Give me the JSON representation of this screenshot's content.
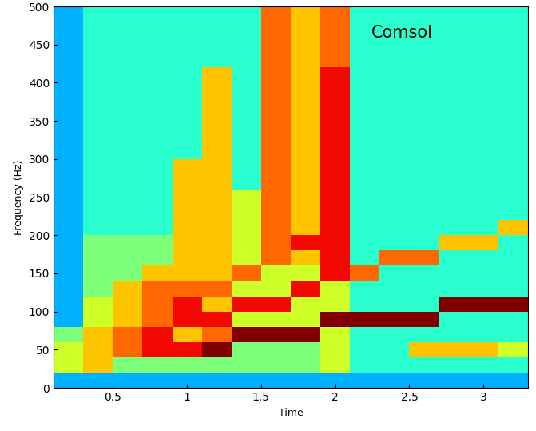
{
  "chart_data": {
    "type": "heatmap",
    "xlabel": "Time",
    "ylabel": "Frequency (Hz)",
    "annotations": [
      "Comsol"
    ],
    "color": "jet",
    "color_range": [
      0,
      10
    ],
    "x_edges": [
      0.1,
      0.3,
      0.5,
      0.7,
      0.9,
      1.1,
      1.3,
      1.5,
      1.7,
      1.9,
      2.1,
      2.3,
      2.5,
      2.7,
      2.9,
      3.1,
      3.3
    ],
    "y_edges": [
      0,
      20,
      40,
      60,
      80,
      100,
      120,
      140,
      160,
      180,
      200,
      220,
      240,
      260,
      280,
      300,
      320,
      340,
      360,
      380,
      400,
      420,
      440,
      460,
      480,
      500
    ],
    "cells": [
      [
        3,
        3,
        3,
        3,
        3,
        3,
        3,
        3,
        3,
        3,
        3,
        3,
        3,
        3,
        3,
        3
      ],
      [
        6,
        7,
        5,
        5,
        5,
        5,
        5,
        5,
        5,
        6,
        4,
        4,
        4,
        4,
        4,
        4
      ],
      [
        6,
        7,
        8,
        9,
        9,
        10,
        5,
        5,
        5,
        6,
        4,
        4,
        7,
        7,
        7,
        6
      ],
      [
        5,
        7,
        8,
        9,
        7,
        8,
        10,
        10,
        10,
        6,
        4,
        4,
        4,
        4,
        4,
        4
      ],
      [
        3,
        6,
        7,
        8,
        9,
        9,
        6,
        6,
        6,
        10,
        10,
        10,
        10,
        4,
        4,
        4
      ],
      [
        3,
        6,
        7,
        8,
        9,
        7,
        9,
        9,
        6,
        6,
        4,
        4,
        4,
        10,
        10,
        10
      ],
      [
        3,
        5,
        7,
        8,
        8,
        8,
        6,
        6,
        9,
        6,
        4,
        4,
        4,
        4,
        4,
        4
      ],
      [
        3,
        5,
        5,
        7,
        7,
        7,
        8,
        6,
        6,
        9,
        8,
        4,
        4,
        4,
        4,
        4
      ],
      [
        3,
        5,
        5,
        5,
        7,
        7,
        6,
        8,
        7,
        9,
        4,
        8,
        8,
        4,
        4,
        4
      ],
      [
        3,
        5,
        5,
        5,
        7,
        7,
        6,
        8,
        9,
        9,
        4,
        4,
        4,
        7,
        7,
        4
      ],
      [
        3,
        4,
        4,
        4,
        7,
        7,
        6,
        8,
        7,
        9,
        4,
        4,
        4,
        4,
        4,
        7
      ],
      [
        3,
        4,
        4,
        4,
        7,
        7,
        6,
        8,
        7,
        9,
        4,
        4,
        4,
        4,
        4,
        4
      ],
      [
        3,
        4,
        4,
        4,
        7,
        7,
        6,
        8,
        7,
        9,
        4,
        4,
        4,
        4,
        4,
        4
      ],
      [
        3,
        4,
        4,
        4,
        7,
        7,
        4,
        8,
        7,
        9,
        4,
        4,
        4,
        4,
        4,
        4
      ],
      [
        3,
        4,
        4,
        4,
        7,
        7,
        4,
        8,
        7,
        9,
        4,
        4,
        4,
        4,
        4,
        4
      ],
      [
        3,
        4,
        4,
        4,
        4,
        7,
        4,
        8,
        7,
        9,
        4,
        4,
        4,
        4,
        4,
        4
      ],
      [
        3,
        4,
        4,
        4,
        4,
        7,
        4,
        8,
        7,
        9,
        4,
        4,
        4,
        4,
        4,
        4
      ],
      [
        3,
        4,
        4,
        4,
        4,
        7,
        4,
        8,
        7,
        9,
        4,
        4,
        4,
        4,
        4,
        4
      ],
      [
        3,
        4,
        4,
        4,
        4,
        7,
        4,
        8,
        7,
        9,
        4,
        4,
        4,
        4,
        4,
        4
      ],
      [
        3,
        4,
        4,
        4,
        4,
        7,
        4,
        8,
        7,
        9,
        4,
        4,
        4,
        4,
        4,
        4
      ],
      [
        3,
        4,
        4,
        4,
        4,
        7,
        4,
        8,
        7,
        9,
        4,
        4,
        4,
        4,
        4,
        4
      ],
      [
        3,
        4,
        4,
        4,
        4,
        4,
        4,
        8,
        7,
        8,
        4,
        4,
        4,
        4,
        4,
        4
      ],
      [
        3,
        4,
        4,
        4,
        4,
        4,
        4,
        8,
        7,
        8,
        4,
        4,
        4,
        4,
        4,
        4
      ],
      [
        3,
        4,
        4,
        4,
        4,
        4,
        4,
        8,
        7,
        8,
        4,
        4,
        4,
        4,
        4,
        4
      ],
      [
        3,
        4,
        4,
        4,
        4,
        4,
        4,
        8,
        7,
        8,
        4,
        4,
        4,
        4,
        4,
        4
      ]
    ],
    "xlim": [
      0.1,
      3.3
    ],
    "xticks": [
      0.5,
      1,
      1.5,
      2,
      2.5,
      3
    ],
    "ylim": [
      0,
      500
    ],
    "yticks": [
      0,
      50,
      100,
      150,
      200,
      250,
      300,
      350,
      400,
      450,
      500
    ],
    "grid": false
  }
}
